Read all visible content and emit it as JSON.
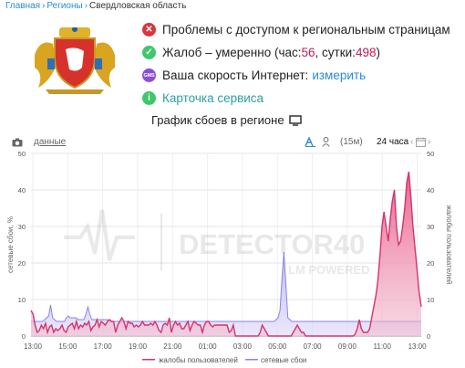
{
  "breadcrumb": {
    "home": "Главная",
    "regions": "Регионы",
    "current": "Свердловская область"
  },
  "status": {
    "problem": "Проблемы с доступом к региональным страницам",
    "complaints_prefix": "Жалоб – умеренно (час: ",
    "complaints_hour": "56",
    "complaints_mid": ", сутки: ",
    "complaints_day": "498",
    "complaints_suffix": ")",
    "speed_label": "Ваша скорость Интернет: ",
    "speed_link": "измерить",
    "speed_icon_text": "GMS",
    "service_card": "Карточка сервиса"
  },
  "chart_header": {
    "title": "График сбоев в регионе"
  },
  "toolbar": {
    "data_link": "данные",
    "interval_15m": "(15м)",
    "interval_24h": "24 часа"
  },
  "watermark": {
    "main": "DETECTOR40",
    "sub": "LM POWERED"
  },
  "colors": {
    "complaints": "#d6336c",
    "network": "#8b83e6",
    "link": "#2b8bd6",
    "ok": "#3ec86b",
    "error": "#d9363e",
    "info": "#3ec86b",
    "speed": "#8a4fd8"
  },
  "chart_data": {
    "type": "area",
    "x_ticks": [
      "13:00",
      "15:00",
      "17:00",
      "19:00",
      "21:00",
      "01:00",
      "03:00",
      "05:00",
      "07:00",
      "09:00",
      "11:00",
      "13:00"
    ],
    "y_left_ticks": [
      "0",
      "10",
      "20",
      "30",
      "40",
      "50"
    ],
    "y_right_ticks": [
      "0",
      "10",
      "20",
      "30",
      "40",
      "50"
    ],
    "ylabel_left": "сетевые сбои, %",
    "ylabel_right": "жалобы пользователей",
    "ylim": [
      0,
      50
    ],
    "series": [
      {
        "name": "сетевые сбои",
        "values": [
          4,
          4,
          4,
          4,
          4,
          4,
          4,
          4.5,
          5,
          5.5,
          8.5,
          5,
          4.5,
          4,
          4,
          4,
          4,
          4,
          5,
          5.5,
          5,
          5,
          5,
          5,
          4.5,
          4.5,
          4.5,
          4.5,
          6,
          8,
          6,
          4.5,
          4.5,
          4.5,
          4.5,
          4.5,
          4.5,
          4.5,
          4.5,
          4.5,
          4,
          4,
          4,
          4,
          4,
          4,
          4,
          4,
          4,
          4,
          4,
          4,
          4,
          4,
          4,
          4,
          4,
          4,
          4,
          4,
          4,
          4,
          4,
          4,
          4,
          4,
          4,
          4,
          4,
          4,
          4,
          4,
          4,
          4,
          4,
          4,
          4,
          4,
          4,
          4,
          4,
          4,
          4,
          4,
          4,
          4,
          4,
          4,
          4,
          4,
          4,
          4,
          4,
          4,
          4,
          4,
          4,
          4,
          4,
          4,
          4,
          4,
          4,
          4,
          4,
          4,
          4,
          4,
          4,
          4,
          4,
          4,
          4,
          4,
          4,
          4,
          4,
          4,
          4,
          4,
          4,
          4,
          4,
          4,
          4,
          4.5,
          5,
          7,
          16,
          23,
          14,
          5,
          4.5,
          4,
          4,
          4,
          4,
          4,
          4,
          4,
          4,
          4,
          4,
          4,
          4,
          4,
          4,
          4,
          4,
          4,
          4,
          4,
          4,
          4,
          4,
          4,
          4,
          4,
          4,
          4,
          4,
          4,
          4,
          4,
          4,
          4,
          4,
          4,
          4,
          4,
          4,
          4,
          4,
          4,
          4,
          4,
          4,
          4,
          4,
          4,
          4,
          4,
          4,
          4,
          4,
          4,
          4,
          4,
          4,
          4,
          4,
          4,
          4,
          4,
          4,
          4,
          4,
          4,
          4,
          4
        ]
      },
      {
        "name": "жалобы пользователей",
        "values": [
          7,
          6,
          3,
          1,
          1.5,
          3,
          2,
          3.5,
          1,
          2.5,
          3,
          1,
          2,
          1.5,
          2,
          3,
          1.5,
          1,
          2.5,
          3,
          3.5,
          2,
          4,
          2,
          3,
          2.5,
          3.5,
          3,
          4,
          1.5,
          2.5,
          3,
          4.5,
          2.5,
          4,
          3.5,
          3,
          4,
          4.5,
          4,
          4,
          1,
          3,
          4,
          5,
          4,
          2,
          4,
          3.5,
          3.5,
          2.5,
          3,
          2.5,
          3,
          4,
          3,
          3,
          3,
          3.5,
          3,
          4,
          3,
          1.5,
          1,
          3,
          3.5,
          3,
          5,
          1,
          3,
          4,
          3,
          3.5,
          2,
          2,
          3,
          4,
          1.5,
          3,
          4,
          3.5,
          3,
          3,
          1,
          3,
          4,
          4,
          3,
          2.5,
          3,
          3,
          3,
          3,
          3,
          3,
          3,
          1,
          1.5,
          3,
          0,
          0,
          0,
          0,
          0,
          0,
          0,
          0,
          0,
          0,
          0,
          0,
          1,
          3,
          2,
          1,
          0,
          0,
          0,
          0,
          0,
          0,
          0,
          0,
          0,
          0,
          0,
          0,
          1,
          2,
          3,
          2,
          1,
          1,
          0,
          0,
          0,
          0,
          0,
          0,
          0,
          0,
          0,
          0,
          0,
          0,
          0,
          0,
          0,
          0,
          0,
          0,
          0,
          0,
          0,
          0,
          0,
          0,
          0.5,
          2,
          4.5,
          2,
          1,
          1,
          1,
          2,
          5,
          8,
          11,
          15,
          22,
          30,
          34,
          30,
          26,
          32,
          37,
          40,
          30,
          25,
          26,
          30,
          35,
          42,
          45,
          38,
          30,
          24,
          18,
          12,
          8
        ]
      }
    ],
    "legend": "bottom"
  }
}
